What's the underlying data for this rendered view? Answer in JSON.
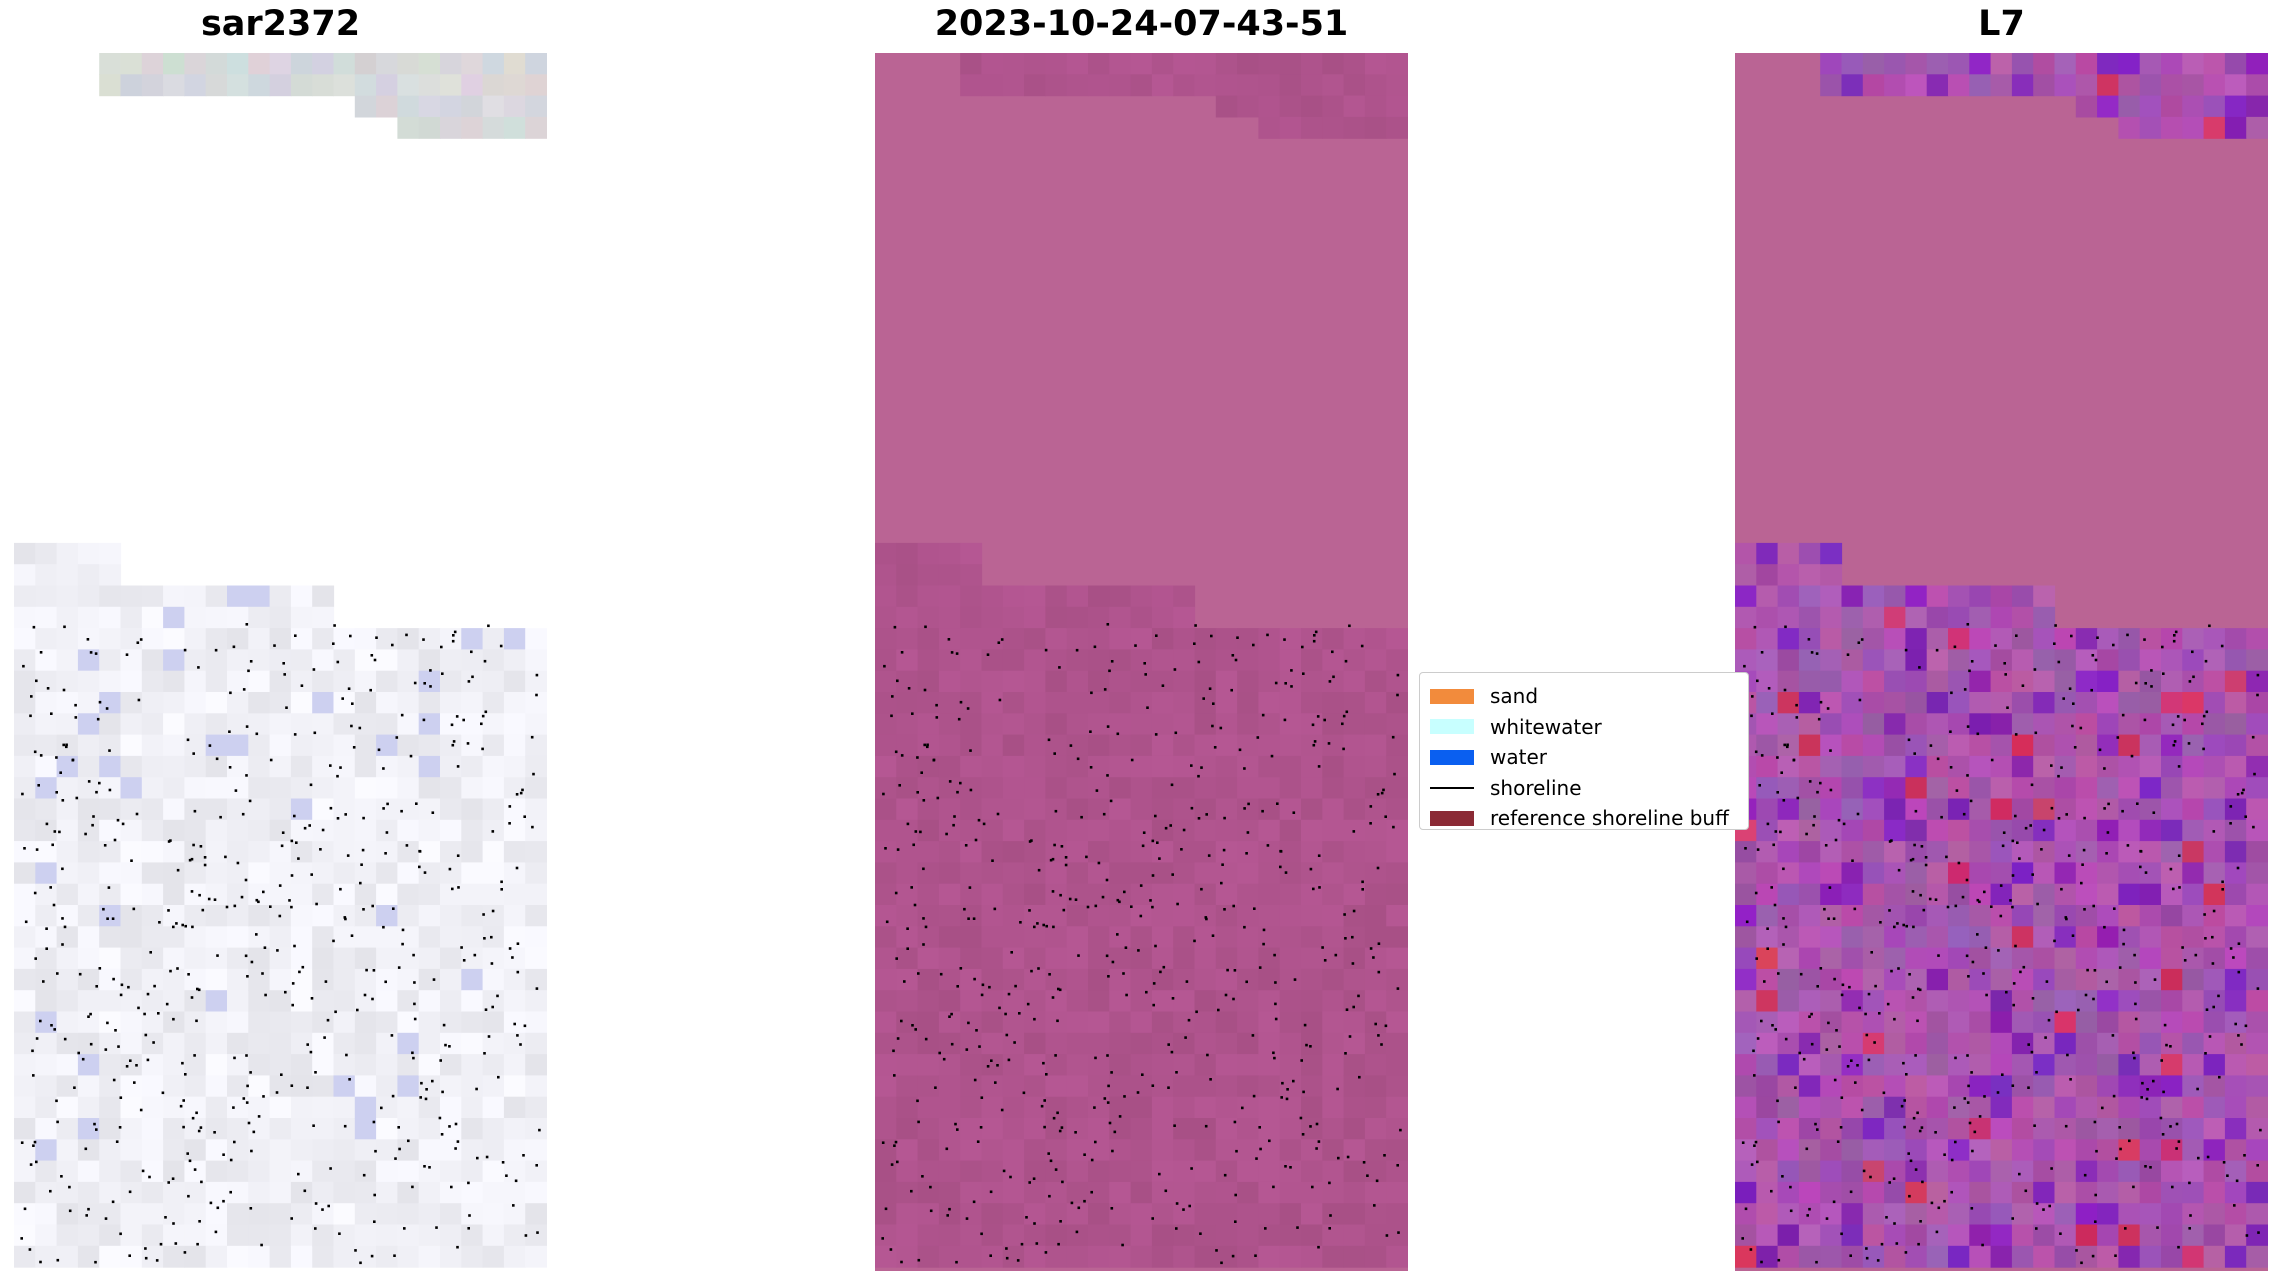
{
  "panels": [
    {
      "title": "sar2372"
    },
    {
      "title": "2023-10-24-07-43-51"
    },
    {
      "title": "L7"
    }
  ],
  "legend": {
    "items": [
      {
        "label": "sand",
        "color": "#f28b3c",
        "kind": "patch"
      },
      {
        "label": "whitewater",
        "color": "#c8ffff",
        "kind": "patch"
      },
      {
        "label": "water",
        "color": "#0a5ff0",
        "kind": "patch"
      },
      {
        "label": "shoreline",
        "color": "#000000",
        "kind": "line"
      },
      {
        "label": "reference shoreline buff",
        "color": "#8b2a35",
        "kind": "patch"
      }
    ]
  },
  "colors": {
    "magenta_base": "#ba6494",
    "magenta_dark": "#a85488",
    "purple": "#7a2db0",
    "crimson": "#c8204a"
  }
}
